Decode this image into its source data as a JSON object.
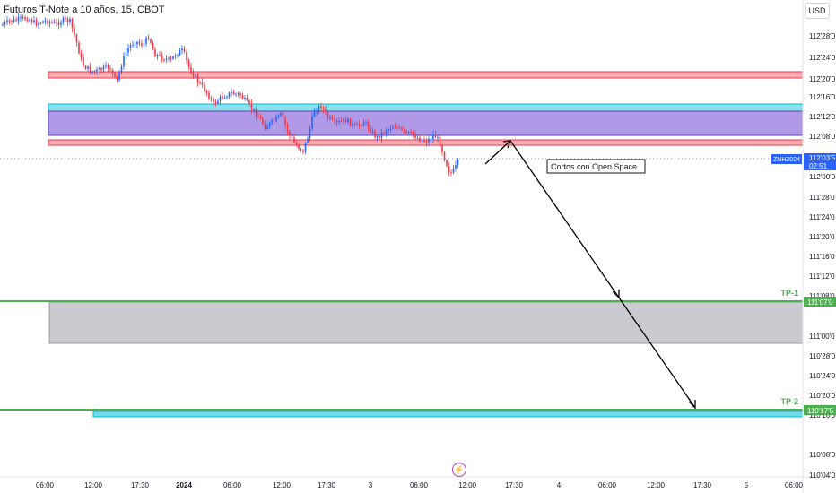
{
  "title": "Futuros T-Note a 10 años, 15, CBOT",
  "currency": "USD",
  "icons": {
    "lightning": "lightning-icon"
  },
  "colors": {
    "up": "#2962ff",
    "down": "#f23645",
    "red_zone": "#f23645",
    "cyan_zone": "#00bcd4",
    "purple_zone": "#9c7fe0",
    "green_line": "#4caf50",
    "gray_zone": "#9598a1"
  },
  "chart_data": {
    "type": "candlestick",
    "symbol": "ZNH2024",
    "price_axis_labels": [
      "112'28'0",
      "112'24'0",
      "112'20'0",
      "112'16'0",
      "112'12'0",
      "112'08'0",
      "112'00'0",
      "111'28'0",
      "111'24'0",
      "111'20'0",
      "111'16'0",
      "111'12'0",
      "111'08'0",
      "111'00'0",
      "110'28'0",
      "110'24'0",
      "110'20'0",
      "110'16'0",
      "110'08'0",
      "110'04'0"
    ],
    "time_axis_labels": [
      "06:00",
      "12:00",
      "17:30",
      "2024",
      "06:00",
      "12:00",
      "17:30",
      "3",
      "06:00",
      "12:00",
      "17:30",
      "4",
      "06:00",
      "12:00",
      "17:30",
      "5",
      "06:00"
    ],
    "last_price": {
      "label": "112'03'5",
      "countdown": "02:51",
      "ticker": "ZNH2024"
    },
    "annotation": "Cortos con Open Space",
    "targets": [
      {
        "name": "TP-1",
        "price_label": "111'07'0"
      },
      {
        "name": "TP-2",
        "price_label": "110'17'5"
      }
    ]
  }
}
